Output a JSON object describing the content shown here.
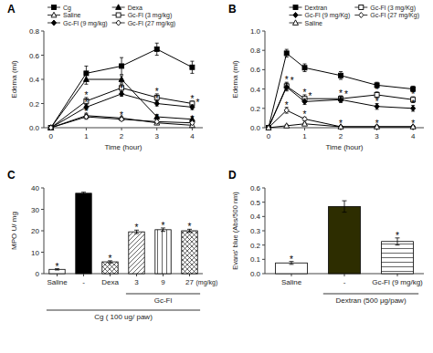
{
  "chart_data": [
    {
      "type": "line",
      "title": "A",
      "xlabel": "Time (hour)",
      "ylabel": "Edema (ml)",
      "x": [
        0,
        1,
        2,
        3,
        4
      ],
      "xlim": [
        -0.2,
        4.3
      ],
      "xticks": [
        0,
        1,
        2,
        3,
        4
      ],
      "ylim": [
        0,
        0.8
      ],
      "yticks": [
        {
          "value": 0,
          "label": "0.0"
        },
        0.2,
        0.4,
        0.6,
        0.8
      ],
      "legend": "upper left",
      "series": [
        {
          "name": "Cg",
          "color": "black",
          "marker": "square",
          "values": [
            0.0,
            0.45,
            0.51,
            0.65,
            0.5
          ],
          "errors": [
            0.0,
            0.06,
            0.07,
            0.05,
            0.05
          ]
        },
        {
          "name": "Dexa",
          "color": "black",
          "marker": "triangle",
          "values": [
            0.0,
            0.4,
            0.4,
            0.09,
            0.07
          ],
          "errors": [
            0.0,
            0.04,
            0.03,
            0.02,
            0.02
          ]
        },
        {
          "name": "Saline",
          "color": "black",
          "marker": "open-triangle",
          "values": [
            0.0,
            0.1,
            0.08,
            0.04,
            0.02
          ],
          "errors": [
            0.0,
            0.02,
            0.01,
            0.01,
            0.01
          ]
        },
        {
          "name": "Gc-Fl (3 mg/kg)",
          "color": "black",
          "marker": "open-square",
          "values": [
            0.0,
            0.22,
            0.33,
            0.25,
            0.2
          ],
          "errors": [
            0.0,
            0.03,
            0.03,
            0.03,
            0.02
          ]
        },
        {
          "name": "Gc-Fl (9 mg/kg)",
          "color": "black",
          "marker": "diamond",
          "values": [
            0.0,
            0.17,
            0.28,
            0.2,
            0.17
          ],
          "errors": [
            0.0,
            0.02,
            0.02,
            0.02,
            0.02
          ]
        },
        {
          "name": "Gc-Fl (27 mg/kg)",
          "color": "black",
          "marker": "open-diamond",
          "values": [
            0.0,
            0.09,
            0.07,
            0.05,
            0.04
          ],
          "errors": [
            0.0,
            0.02,
            0.01,
            0.01,
            0.01
          ]
        }
      ],
      "annotations": [
        {
          "text": "*",
          "x": 1,
          "y": 0.25
        },
        {
          "text": "*",
          "x": 1,
          "y": 0.19
        },
        {
          "text": "*",
          "x": 1,
          "y": 0.11
        },
        {
          "text": "*",
          "x": 2,
          "y": 0.36
        },
        {
          "text": "*",
          "x": 2,
          "y": 0.3
        },
        {
          "text": "*",
          "x": 2,
          "y": 0.08
        },
        {
          "text": "*",
          "x": 3,
          "y": 0.28
        },
        {
          "text": "*",
          "x": 3,
          "y": 0.22
        },
        {
          "text": "*",
          "x": 3,
          "y": 0.06
        },
        {
          "text": "*",
          "x": 4,
          "y": 0.22
        },
        {
          "text": "*",
          "x": 4,
          "y": 0.19
        },
        {
          "text": "*",
          "x": 4,
          "y": 0.05
        }
      ]
    },
    {
      "type": "line",
      "title": "B",
      "xlabel": "Time (hour)",
      "ylabel": "Edema (ml)",
      "x": [
        0,
        0.5,
        1,
        2,
        3,
        4
      ],
      "xlim": [
        -0.1,
        4.3
      ],
      "xticks": [
        0,
        1,
        2,
        3,
        4
      ],
      "ylim": [
        0,
        1.0
      ],
      "yticks": [
        {
          "value": 0,
          "label": "0.0"
        },
        0.2,
        0.4,
        0.6,
        0.8,
        {
          "value": 1,
          "label": "1.0"
        }
      ],
      "legend": "upper right",
      "series": [
        {
          "name": "Dextran",
          "color": "black",
          "marker": "square",
          "values": [
            0.0,
            0.77,
            0.62,
            0.54,
            0.44,
            0.4
          ],
          "errors": [
            0.0,
            0.04,
            0.04,
            0.04,
            0.03,
            0.03
          ]
        },
        {
          "name": "Gc-Fl (3 mg/Kg)",
          "color": "black",
          "marker": "open-square",
          "values": [
            0.0,
            0.43,
            0.3,
            0.3,
            0.34,
            0.29
          ],
          "errors": [
            0.0,
            0.04,
            0.04,
            0.03,
            0.03,
            0.03
          ]
        },
        {
          "name": "Gc-Fl (9 mg/Kg)",
          "color": "black",
          "marker": "diamond",
          "values": [
            0.0,
            0.42,
            0.27,
            0.29,
            0.22,
            0.2
          ],
          "errors": [
            0.0,
            0.04,
            0.03,
            0.03,
            0.03,
            0.03
          ]
        },
        {
          "name": "Gc-Fl (27 mg/Kg)",
          "color": "black",
          "marker": "open-diamond",
          "values": [
            0.0,
            0.18,
            0.09,
            0.01,
            0.01,
            0.01
          ],
          "errors": [
            0.0,
            0.03,
            0.02,
            0.01,
            0.01,
            0.01
          ]
        },
        {
          "name": "Saline",
          "color": "black",
          "marker": "open-triangle",
          "values": [
            0.0,
            0.02,
            0.04,
            0.01,
            0.01,
            0.01
          ],
          "errors": [
            0.0,
            0.01,
            0.01,
            0.01,
            0.01,
            0.01
          ]
        }
      ],
      "annotations": [
        {
          "text": "*",
          "x": 0.5,
          "y": 0.47
        },
        {
          "text": "*",
          "x": 0.5,
          "y": 0.46
        },
        {
          "text": "*",
          "x": 0.5,
          "y": 0.21
        },
        {
          "text": "*",
          "x": 1,
          "y": 0.34
        },
        {
          "text": "*",
          "x": 1,
          "y": 0.3
        },
        {
          "text": "*",
          "x": 1,
          "y": 0.11
        },
        {
          "text": "*",
          "x": 2,
          "y": 0.33
        },
        {
          "text": "*",
          "x": 2,
          "y": 0.32
        },
        {
          "text": "*",
          "x": 2,
          "y": 0.02
        },
        {
          "text": "*",
          "x": 3,
          "y": 0.37
        },
        {
          "text": "*",
          "x": 3,
          "y": 0.25
        },
        {
          "text": "*",
          "x": 3,
          "y": 0.02
        },
        {
          "text": "*",
          "x": 4,
          "y": 0.32
        },
        {
          "text": "*",
          "x": 4,
          "y": 0.23
        },
        {
          "text": "*",
          "x": 4,
          "y": 0.02
        }
      ]
    },
    {
      "type": "bar",
      "title": "C",
      "ylabel": "MPO U/ mg",
      "categories": [
        "Saline",
        "-",
        "Dexa",
        "3",
        "9",
        "27"
      ],
      "values": [
        2.0,
        37.5,
        5.5,
        19.5,
        20.5,
        20.0
      ],
      "errors": [
        0.3,
        0.5,
        0.5,
        0.8,
        0.8,
        0.7
      ],
      "colors": [
        "white",
        "black",
        "white",
        "white",
        "white",
        "white"
      ],
      "ylim": [
        0,
        40
      ],
      "yticks": [
        0,
        10,
        20,
        30,
        40
      ],
      "annotations": [
        {
          "text": "*",
          "x": "Saline",
          "y": 2.3
        },
        {
          "text": "*",
          "x": "Dexa",
          "y": 6.0
        },
        {
          "text": "*",
          "x": "3",
          "y": 20.3
        },
        {
          "text": "*",
          "x": "9",
          "y": 21.3
        },
        {
          "text": "*",
          "x": "27",
          "y": 20.7
        },
        {
          "text": "(mg/kg)",
          "after": "27"
        },
        {
          "text": "Gc-Fl",
          "span": [
            "3",
            "27"
          ]
        },
        {
          "text": "Cg ( 100 ug/ paw)",
          "span": [
            "Saline",
            "27"
          ]
        }
      ]
    },
    {
      "type": "bar",
      "title": "D",
      "ylabel": "Evans' blue (Abs/500 nm)",
      "categories": [
        "Saline",
        "-",
        "Gc-Fl (9 mg/kg)"
      ],
      "values": [
        0.075,
        0.47,
        0.225
      ],
      "errors": [
        0.01,
        0.04,
        0.025
      ],
      "colors": [
        "white",
        "#2d2d00",
        "white"
      ],
      "ylim": [
        0,
        0.6
      ],
      "yticks": [
        {
          "value": 0,
          "label": "0.0"
        },
        0.1,
        0.2,
        0.3,
        0.4,
        0.5,
        0.6
      ],
      "annotations": [
        {
          "text": "*",
          "x": "Saline",
          "y": 0.085
        },
        {
          "text": "*",
          "x": "Gc-Fl (9 mg/kg)",
          "y": 0.25
        },
        {
          "text": "Dextran (500 μg/paw)",
          "span": [
            "-",
            "Gc-Fl (9 mg/kg)"
          ]
        }
      ]
    }
  ]
}
